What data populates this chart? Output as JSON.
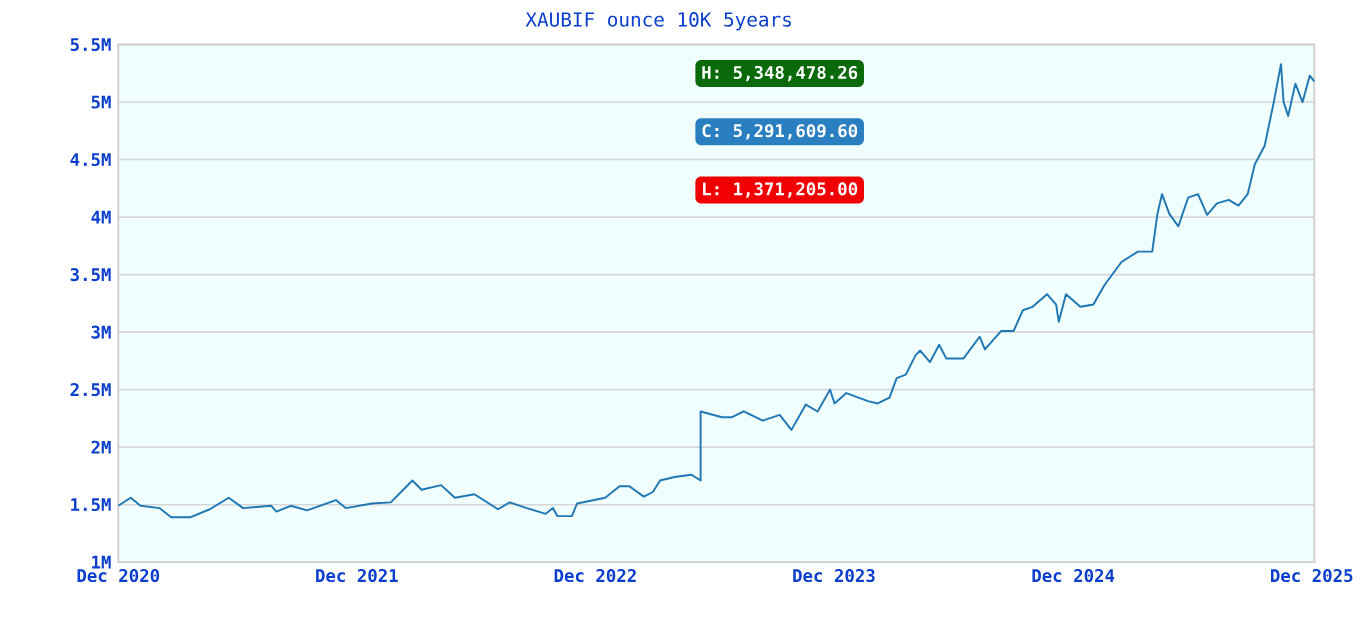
{
  "chart_data": {
    "type": "line",
    "title": "XAUBIF ounce 10K 5years",
    "x": [
      "2020-12-01",
      "2020-12-20",
      "2021-01-04",
      "2021-02-02",
      "2021-02-20",
      "2021-03-21",
      "2021-04-20",
      "2021-05-19",
      "2021-06-10",
      "2021-07-23",
      "2021-07-31",
      "2021-08-22",
      "2021-09-16",
      "2021-10-30",
      "2021-11-14",
      "2021-12-24",
      "2022-01-22",
      "2022-02-24",
      "2022-03-10",
      "2022-04-09",
      "2022-04-30",
      "2022-05-30",
      "2022-07-05",
      "2022-07-23",
      "2022-08-18",
      "2022-09-16",
      "2022-09-27",
      "2022-10-04",
      "2022-10-26",
      "2022-11-03",
      "2022-12-16",
      "2023-01-07",
      "2023-01-22",
      "2023-02-13",
      "2023-02-27",
      "2023-03-10",
      "2023-04-01",
      "2023-04-27",
      "2023-05-11",
      "2023-05-11",
      "2023-06-13",
      "2023-06-28",
      "2023-07-16",
      "2023-08-14",
      "2023-09-09",
      "2023-09-27",
      "2023-10-19",
      "2023-11-06",
      "2023-11-25",
      "2023-12-02",
      "2023-12-20",
      "2024-01-22",
      "2024-02-06",
      "2024-02-24",
      "2024-03-06",
      "2024-03-20",
      "2024-04-04",
      "2024-04-11",
      "2024-04-26",
      "2024-05-10",
      "2024-05-21",
      "2024-06-16",
      "2024-07-11",
      "2024-07-19",
      "2024-08-13",
      "2024-09-01",
      "2024-09-15",
      "2024-09-30",
      "2024-10-22",
      "2024-11-05",
      "2024-11-09",
      "2024-11-20",
      "2024-12-12",
      "2025-01-01",
      "2025-01-18",
      "2025-02-13",
      "2025-03-10",
      "2025-04-01",
      "2025-04-09",
      "2025-04-16",
      "2025-04-27",
      "2025-05-11",
      "2025-05-26",
      "2025-06-10",
      "2025-06-24",
      "2025-07-09",
      "2025-07-27",
      "2025-08-11",
      "2025-08-25",
      "2025-09-05",
      "2025-09-20",
      "2025-10-04",
      "2025-10-15",
      "2025-10-19",
      "2025-10-26",
      "2025-11-06",
      "2025-11-17",
      "2025-11-28",
      "2025-12-05"
    ],
    "series": [
      {
        "color": "#1f77b4",
        "values": [
          1490000,
          1560000,
          1490000,
          1470000,
          1390000,
          1390000,
          1460000,
          1560000,
          1470000,
          1490000,
          1440000,
          1490000,
          1450000,
          1540000,
          1470000,
          1510000,
          1520000,
          1710000,
          1630000,
          1670000,
          1560000,
          1590000,
          1460000,
          1520000,
          1470000,
          1420000,
          1470000,
          1400000,
          1400000,
          1510000,
          1560000,
          1660000,
          1660000,
          1570000,
          1610000,
          1710000,
          1740000,
          1760000,
          1710000,
          2310000,
          2260000,
          2260000,
          2310000,
          2230000,
          2280000,
          2150000,
          2370000,
          2310000,
          2500000,
          2380000,
          2470000,
          2400000,
          2380000,
          2430000,
          2600000,
          2630000,
          2800000,
          2840000,
          2740000,
          2890000,
          2770000,
          2770000,
          2960000,
          2850000,
          3010000,
          3010000,
          3190000,
          3220000,
          3330000,
          3240000,
          3090000,
          3330000,
          3220000,
          3240000,
          3410000,
          3610000,
          3700000,
          3700000,
          4030000,
          4200000,
          4030000,
          3920000,
          4170000,
          4200000,
          4020000,
          4120000,
          4150000,
          4100000,
          4200000,
          4460000,
          4620000,
          5000000,
          5330000,
          5000000,
          4880000,
          5160000,
          5000000,
          5230000,
          5180000
        ]
      }
    ],
    "xlim": [
      "2020-12-01",
      "2025-12-05"
    ],
    "xticks": [
      {
        "value": "2020-12-01",
        "label": "Dec 2020"
      },
      {
        "value": "2021-12-01",
        "label": "Dec 2021"
      },
      {
        "value": "2022-12-01",
        "label": "Dec 2022"
      },
      {
        "value": "2023-12-01",
        "label": "Dec 2023"
      },
      {
        "value": "2024-12-01",
        "label": "Dec 2024"
      },
      {
        "value": "2025-12-01",
        "label": "Dec 2025"
      }
    ],
    "ylim": [
      1000000,
      5500000
    ],
    "yticks": [
      {
        "value": 1000000,
        "label": "1M"
      },
      {
        "value": 1500000,
        "label": "1.5M"
      },
      {
        "value": 2000000,
        "label": "2M"
      },
      {
        "value": 2500000,
        "label": "2.5M"
      },
      {
        "value": 3000000,
        "label": "3M"
      },
      {
        "value": 3500000,
        "label": "3.5M"
      },
      {
        "value": 4000000,
        "label": "4M"
      },
      {
        "value": 4500000,
        "label": "4.5M"
      },
      {
        "value": 5000000,
        "label": "5M"
      },
      {
        "value": 5500000,
        "label": "5.5M"
      }
    ],
    "grid": "y",
    "annotations": [
      "H: 5,348,478.26",
      "C: 5,291,609.60",
      "L: 1,371,205.00"
    ]
  }
}
